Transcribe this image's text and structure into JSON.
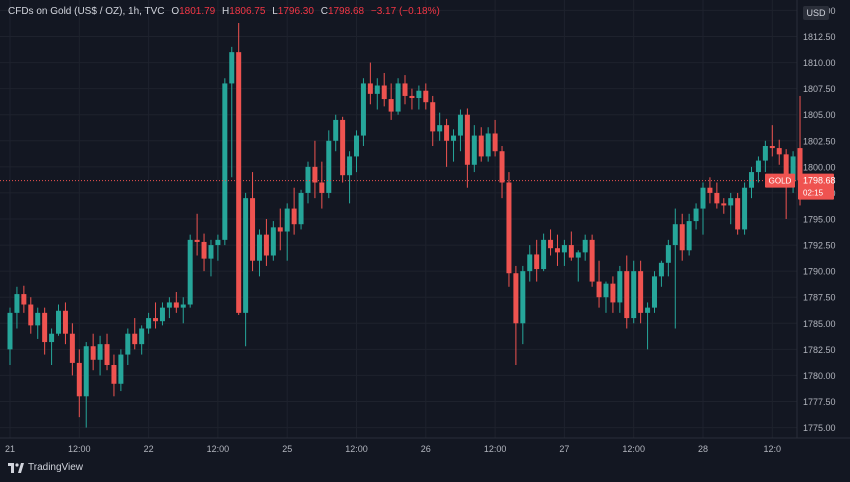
{
  "header": {
    "symbol": "CFDs on Gold (US$ / OZ), 1h, TVC",
    "open_label": "O",
    "open": "1801.79",
    "high_label": "H",
    "high": "1806.75",
    "low_label": "L",
    "low": "1796.30",
    "close_label": "C",
    "close": "1798.68",
    "change": "−3.17 (−0.18%)"
  },
  "currency": "USD",
  "price_tag": {
    "symbol": "GOLD",
    "price": "1798.68",
    "countdown": "02:15"
  },
  "brand": "TradingView",
  "colors": {
    "up": "#26a69a",
    "down": "#ef5350",
    "background": "#131722"
  },
  "chart_data": {
    "type": "candlestick",
    "ylim": [
      1774,
      1816
    ],
    "y_ticks": [
      "1775.00",
      "1777.50",
      "1780.00",
      "1782.50",
      "1785.00",
      "1787.50",
      "1790.00",
      "1792.50",
      "1795.00",
      "1797.50",
      "1800.00",
      "1802.50",
      "1805.00",
      "1807.50",
      "1810.00",
      "1812.50",
      "1815.00"
    ],
    "x_ticks": [
      {
        "i": 0,
        "label": "21"
      },
      {
        "i": 10,
        "label": "12:00"
      },
      {
        "i": 20,
        "label": "22"
      },
      {
        "i": 30,
        "label": "12:00"
      },
      {
        "i": 40,
        "label": "25"
      },
      {
        "i": 50,
        "label": "12:00"
      },
      {
        "i": 60,
        "label": "26"
      },
      {
        "i": 70,
        "label": "12:00"
      },
      {
        "i": 80,
        "label": "27"
      },
      {
        "i": 90,
        "label": "12:00"
      },
      {
        "i": 100,
        "label": "28"
      },
      {
        "i": 110,
        "label": "12:0"
      }
    ],
    "candles": [
      [
        1782.5,
        1786.5,
        1781.0,
        1786.0
      ],
      [
        1786.0,
        1788.5,
        1784.5,
        1787.8
      ],
      [
        1787.8,
        1788.6,
        1786.0,
        1786.8
      ],
      [
        1786.8,
        1787.5,
        1784.0,
        1784.8
      ],
      [
        1784.8,
        1786.5,
        1783.5,
        1786.0
      ],
      [
        1786.0,
        1786.5,
        1782.0,
        1783.2
      ],
      [
        1783.2,
        1784.5,
        1781.0,
        1784.0
      ],
      [
        1784.0,
        1786.8,
        1783.8,
        1786.2
      ],
      [
        1786.2,
        1787.0,
        1783.0,
        1784.0
      ],
      [
        1784.0,
        1785.0,
        1780.0,
        1781.2
      ],
      [
        1781.2,
        1782.5,
        1776.0,
        1778.0
      ],
      [
        1778.0,
        1783.2,
        1775.0,
        1782.8
      ],
      [
        1782.8,
        1784.0,
        1780.5,
        1781.5
      ],
      [
        1781.5,
        1783.8,
        1780.0,
        1783.0
      ],
      [
        1783.0,
        1784.0,
        1780.5,
        1781.0
      ],
      [
        1781.0,
        1782.0,
        1778.0,
        1779.2
      ],
      [
        1779.2,
        1782.5,
        1778.5,
        1782.0
      ],
      [
        1782.0,
        1784.5,
        1781.0,
        1784.0
      ],
      [
        1784.0,
        1785.5,
        1782.5,
        1783.0
      ],
      [
        1783.0,
        1784.8,
        1782.0,
        1784.5
      ],
      [
        1784.5,
        1786.0,
        1784.0,
        1785.5
      ],
      [
        1785.5,
        1787.0,
        1784.5,
        1785.2
      ],
      [
        1785.2,
        1787.0,
        1784.8,
        1786.5
      ],
      [
        1786.5,
        1787.5,
        1785.5,
        1787.0
      ],
      [
        1787.0,
        1788.0,
        1786.0,
        1786.5
      ],
      [
        1786.5,
        1787.5,
        1785.0,
        1786.8
      ],
      [
        1786.8,
        1793.5,
        1786.5,
        1793.0
      ],
      [
        1793.0,
        1795.5,
        1791.5,
        1792.8
      ],
      [
        1792.8,
        1793.6,
        1790.0,
        1791.2
      ],
      [
        1791.2,
        1793.0,
        1789.5,
        1792.5
      ],
      [
        1792.5,
        1793.5,
        1791.0,
        1793.0
      ],
      [
        1793.0,
        1808.5,
        1792.5,
        1808.0
      ],
      [
        1808.0,
        1811.5,
        1799.0,
        1811.0
      ],
      [
        1811.0,
        1813.8,
        1785.8,
        1786.0
      ],
      [
        1786.0,
        1797.5,
        1782.8,
        1797.0
      ],
      [
        1797.0,
        1799.5,
        1790.0,
        1791.0
      ],
      [
        1791.0,
        1794.0,
        1789.5,
        1793.5
      ],
      [
        1793.5,
        1795.0,
        1790.5,
        1791.5
      ],
      [
        1791.5,
        1794.8,
        1791.0,
        1794.2
      ],
      [
        1794.2,
        1796.0,
        1792.0,
        1793.8
      ],
      [
        1793.8,
        1796.5,
        1791.0,
        1796.0
      ],
      [
        1796.0,
        1798.0,
        1793.5,
        1794.5
      ],
      [
        1794.5,
        1797.8,
        1794.0,
        1797.5
      ],
      [
        1797.5,
        1800.5,
        1796.5,
        1800.0
      ],
      [
        1800.0,
        1802.5,
        1797.0,
        1798.5
      ],
      [
        1798.5,
        1800.5,
        1796.0,
        1797.5
      ],
      [
        1797.5,
        1803.5,
        1797.0,
        1802.5
      ],
      [
        1802.5,
        1805.0,
        1801.5,
        1804.5
      ],
      [
        1804.5,
        1804.8,
        1798.5,
        1799.2
      ],
      [
        1799.2,
        1801.5,
        1796.5,
        1801.0
      ],
      [
        1801.0,
        1803.5,
        1799.5,
        1803.0
      ],
      [
        1803.0,
        1808.5,
        1802.0,
        1808.0
      ],
      [
        1808.0,
        1810.0,
        1806.0,
        1807.0
      ],
      [
        1807.0,
        1808.5,
        1805.5,
        1807.8
      ],
      [
        1807.8,
        1809.0,
        1805.8,
        1806.5
      ],
      [
        1806.5,
        1808.0,
        1804.5,
        1805.3
      ],
      [
        1805.3,
        1808.5,
        1805.0,
        1808.0
      ],
      [
        1808.0,
        1808.8,
        1806.0,
        1806.8
      ],
      [
        1806.8,
        1807.5,
        1805.5,
        1806.6
      ],
      [
        1806.6,
        1807.8,
        1805.5,
        1807.3
      ],
      [
        1807.3,
        1808.0,
        1805.5,
        1806.2
      ],
      [
        1806.2,
        1806.8,
        1802.0,
        1803.4
      ],
      [
        1803.4,
        1805.2,
        1802.5,
        1804.0
      ],
      [
        1804.0,
        1804.6,
        1800.0,
        1802.5
      ],
      [
        1802.5,
        1803.6,
        1800.5,
        1803.0
      ],
      [
        1803.0,
        1805.5,
        1801.5,
        1805.0
      ],
      [
        1805.0,
        1805.6,
        1798.0,
        1800.2
      ],
      [
        1800.2,
        1804.0,
        1799.5,
        1803.0
      ],
      [
        1803.0,
        1803.8,
        1800.5,
        1801.0
      ],
      [
        1801.0,
        1803.8,
        1800.5,
        1803.2
      ],
      [
        1803.2,
        1804.5,
        1801.0,
        1801.5
      ],
      [
        1801.5,
        1802.0,
        1797.0,
        1798.5
      ],
      [
        1798.5,
        1799.5,
        1788.5,
        1789.8
      ],
      [
        1789.8,
        1790.5,
        1781.0,
        1785.0
      ],
      [
        1785.0,
        1790.5,
        1783.0,
        1790.0
      ],
      [
        1790.0,
        1792.5,
        1789.0,
        1791.6
      ],
      [
        1791.6,
        1793.0,
        1789.0,
        1790.2
      ],
      [
        1790.2,
        1793.6,
        1790.0,
        1793.0
      ],
      [
        1793.0,
        1794.0,
        1791.5,
        1792.2
      ],
      [
        1792.2,
        1793.5,
        1790.5,
        1791.8
      ],
      [
        1791.8,
        1793.0,
        1790.5,
        1792.5
      ],
      [
        1792.5,
        1793.8,
        1791.0,
        1791.3
      ],
      [
        1791.3,
        1792.0,
        1789.0,
        1791.8
      ],
      [
        1791.8,
        1793.5,
        1791.0,
        1793.0
      ],
      [
        1793.0,
        1793.5,
        1788.5,
        1789.0
      ],
      [
        1789.0,
        1791.0,
        1786.5,
        1787.5
      ],
      [
        1787.5,
        1789.0,
        1786.0,
        1788.8
      ],
      [
        1788.8,
        1789.5,
        1786.0,
        1787.0
      ],
      [
        1787.0,
        1790.5,
        1786.0,
        1790.0
      ],
      [
        1790.0,
        1791.5,
        1784.5,
        1785.5
      ],
      [
        1785.5,
        1791.0,
        1785.0,
        1790.0
      ],
      [
        1790.0,
        1791.0,
        1785.0,
        1786.0
      ],
      [
        1786.0,
        1787.0,
        1782.5,
        1786.5
      ],
      [
        1786.5,
        1790.0,
        1786.0,
        1789.5
      ],
      [
        1789.5,
        1791.0,
        1788.5,
        1790.8
      ],
      [
        1790.8,
        1793.0,
        1789.5,
        1792.5
      ],
      [
        1792.5,
        1796.0,
        1784.5,
        1794.5
      ],
      [
        1794.5,
        1795.5,
        1791.0,
        1792.0
      ],
      [
        1792.0,
        1795.5,
        1791.5,
        1794.8
      ],
      [
        1794.8,
        1796.5,
        1794.0,
        1796.0
      ],
      [
        1796.0,
        1798.5,
        1793.5,
        1798.0
      ],
      [
        1798.0,
        1799.0,
        1796.5,
        1797.5
      ],
      [
        1797.5,
        1798.5,
        1796.0,
        1796.5
      ],
      [
        1796.5,
        1797.0,
        1795.5,
        1796.3
      ],
      [
        1796.3,
        1797.5,
        1794.5,
        1797.0
      ],
      [
        1797.0,
        1797.5,
        1793.5,
        1794.0
      ],
      [
        1794.0,
        1798.5,
        1793.5,
        1798.0
      ],
      [
        1798.0,
        1800.0,
        1797.0,
        1799.5
      ],
      [
        1799.5,
        1801.0,
        1798.5,
        1800.6
      ],
      [
        1800.6,
        1802.5,
        1799.5,
        1802.0
      ],
      [
        1802.0,
        1804.0,
        1801.0,
        1801.8
      ],
      [
        1801.8,
        1802.6,
        1800.2,
        1801.2
      ],
      [
        1801.2,
        1801.7,
        1795.0,
        1798.6
      ],
      [
        1798.6,
        1801.5,
        1797.5,
        1801.0
      ],
      [
        1801.8,
        1806.8,
        1796.3,
        1798.7
      ]
    ],
    "last_price": 1798.68
  }
}
